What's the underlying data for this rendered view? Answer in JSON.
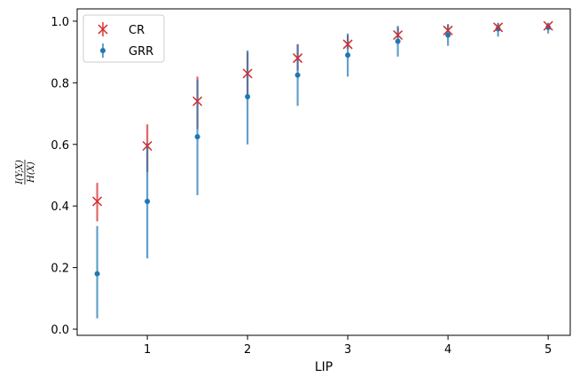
{
  "chart_data": {
    "type": "scatter",
    "xlabel": "LIP",
    "ylabel": "I(Y;X) / H(X)",
    "xlim": [
      0.3,
      5.22
    ],
    "ylim": [
      -0.02,
      1.04
    ],
    "xticks": [
      1,
      2,
      3,
      4,
      5
    ],
    "yticks": [
      0.0,
      0.2,
      0.4,
      0.6,
      0.8,
      1.0
    ],
    "grid": false,
    "legend_position": "top-left",
    "x": [
      0.5,
      1.0,
      1.5,
      2.0,
      2.5,
      3.0,
      3.5,
      4.0,
      4.5,
      5.0
    ],
    "series": [
      {
        "name": "CR",
        "marker": "x",
        "color": "#d62728",
        "errcolor": "#d62728",
        "values": [
          0.415,
          0.595,
          0.74,
          0.83,
          0.88,
          0.925,
          0.955,
          0.97,
          0.98,
          0.985
        ],
        "lower": [
          0.35,
          0.51,
          0.65,
          0.76,
          0.84,
          0.91,
          0.945,
          0.965,
          0.978,
          0.983
        ],
        "upper": [
          0.475,
          0.665,
          0.82,
          0.9,
          0.925,
          0.955,
          0.98,
          0.99,
          0.992,
          0.993
        ]
      },
      {
        "name": "GRR",
        "marker": "o",
        "color": "#1f77b4",
        "errcolor": "#1f77b4",
        "values": [
          0.18,
          0.415,
          0.625,
          0.755,
          0.825,
          0.89,
          0.935,
          0.955,
          0.975,
          0.98
        ],
        "lower": [
          0.035,
          0.23,
          0.435,
          0.6,
          0.725,
          0.82,
          0.885,
          0.92,
          0.95,
          0.96
        ],
        "upper": [
          0.335,
          0.605,
          0.81,
          0.905,
          0.925,
          0.96,
          0.985,
          0.99,
          0.995,
          0.995
        ]
      }
    ]
  }
}
